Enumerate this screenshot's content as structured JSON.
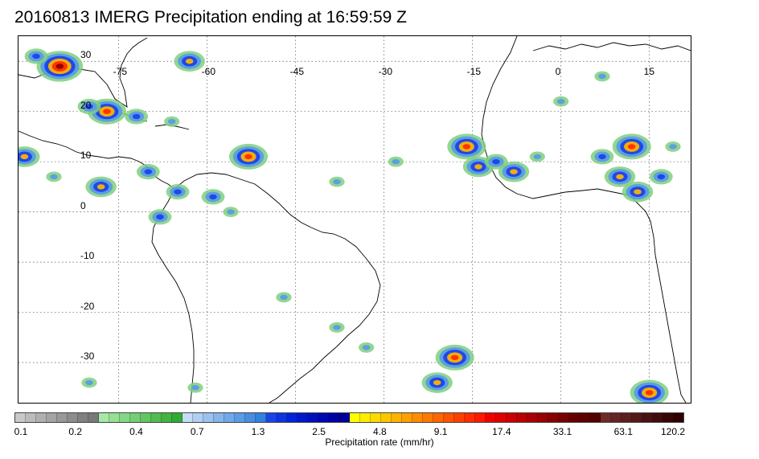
{
  "title": "20160813 IMERG Precipitation ending at 16:59:59 Z",
  "map": {
    "lon_range": [
      -92,
      22
    ],
    "lat_range": [
      -38,
      35
    ],
    "lon_ticks": [
      {
        "value": -75,
        "label": "-75"
      },
      {
        "value": -60,
        "label": "-60"
      },
      {
        "value": -45,
        "label": "-45"
      },
      {
        "value": -30,
        "label": "-30"
      },
      {
        "value": -15,
        "label": "-15"
      },
      {
        "value": 0,
        "label": "0"
      },
      {
        "value": 15,
        "label": "15"
      }
    ],
    "lat_ticks": [
      {
        "value": 30,
        "label": "30"
      },
      {
        "value": 20,
        "label": "20"
      },
      {
        "value": 10,
        "label": "10"
      },
      {
        "value": 0,
        "label": "0"
      },
      {
        "value": -10,
        "label": "-10"
      },
      {
        "value": -20,
        "label": "-20"
      },
      {
        "value": -30,
        "label": "-30"
      }
    ],
    "gridlines": "dotted",
    "coastline_color": "#000000",
    "precip_cells": [
      {
        "lon": -85,
        "lat": 29,
        "intensity": 5
      },
      {
        "lon": -89,
        "lat": 31,
        "intensity": 2
      },
      {
        "lon": -63,
        "lat": 30,
        "intensity": 3
      },
      {
        "lon": -77,
        "lat": 20,
        "intensity": 4
      },
      {
        "lon": -80,
        "lat": 21,
        "intensity": 2
      },
      {
        "lon": -72,
        "lat": 19,
        "intensity": 2
      },
      {
        "lon": -66,
        "lat": 18,
        "intensity": 1
      },
      {
        "lon": -91,
        "lat": 11,
        "intensity": 3
      },
      {
        "lon": -86,
        "lat": 7,
        "intensity": 1
      },
      {
        "lon": -78,
        "lat": 5,
        "intensity": 3
      },
      {
        "lon": -70,
        "lat": 8,
        "intensity": 2
      },
      {
        "lon": -65,
        "lat": 4,
        "intensity": 2
      },
      {
        "lon": -59,
        "lat": 3,
        "intensity": 2
      },
      {
        "lon": -68,
        "lat": -1,
        "intensity": 2
      },
      {
        "lon": -56,
        "lat": 0,
        "intensity": 1
      },
      {
        "lon": -53,
        "lat": 11,
        "intensity": 4
      },
      {
        "lon": -38,
        "lat": 6,
        "intensity": 1
      },
      {
        "lon": -28,
        "lat": 10,
        "intensity": 1
      },
      {
        "lon": -16,
        "lat": 13,
        "intensity": 4
      },
      {
        "lon": -14,
        "lat": 9,
        "intensity": 3
      },
      {
        "lon": -11,
        "lat": 10,
        "intensity": 2
      },
      {
        "lon": -8,
        "lat": 8,
        "intensity": 3
      },
      {
        "lon": -4,
        "lat": 11,
        "intensity": 1
      },
      {
        "lon": 0,
        "lat": 22,
        "intensity": 1
      },
      {
        "lon": 7,
        "lat": 27,
        "intensity": 1
      },
      {
        "lon": 7,
        "lat": 11,
        "intensity": 2
      },
      {
        "lon": 10,
        "lat": 7,
        "intensity": 3
      },
      {
        "lon": 12,
        "lat": 13,
        "intensity": 4
      },
      {
        "lon": 13,
        "lat": 4,
        "intensity": 3
      },
      {
        "lon": 17,
        "lat": 7,
        "intensity": 2
      },
      {
        "lon": 19,
        "lat": 13,
        "intensity": 1
      },
      {
        "lon": -47,
        "lat": -17,
        "intensity": 1
      },
      {
        "lon": -38,
        "lat": -23,
        "intensity": 1
      },
      {
        "lon": -33,
        "lat": -27,
        "intensity": 1
      },
      {
        "lon": -18,
        "lat": -29,
        "intensity": 4
      },
      {
        "lon": -21,
        "lat": -34,
        "intensity": 3
      },
      {
        "lon": 15,
        "lat": -36,
        "intensity": 4
      },
      {
        "lon": -62,
        "lat": -35,
        "intensity": 1
      },
      {
        "lon": -80,
        "lat": -34,
        "intensity": 1
      }
    ]
  },
  "colorbar": {
    "label": "Precipitation rate (mm/hr)",
    "colors": [
      "#c8c8c8",
      "#bcbcbc",
      "#b0b0b0",
      "#a4a4a4",
      "#989898",
      "#8c8c8c",
      "#808080",
      "#787878",
      "#a6e9a6",
      "#95e095",
      "#84d884",
      "#73cf73",
      "#62c662",
      "#51bd51",
      "#40b540",
      "#30ac30",
      "#c4dcf6",
      "#afcff3",
      "#9ac2f0",
      "#85b5ec",
      "#70a8e9",
      "#5b9be6",
      "#468ee2",
      "#3181df",
      "#1a44e8",
      "#0d34e1",
      "#0024d9",
      "#0018cc",
      "#0010bf",
      "#0008b2",
      "#0000a5",
      "#000098",
      "#ffff00",
      "#ffec00",
      "#ffd900",
      "#ffc600",
      "#ffb200",
      "#ff9f00",
      "#ff8c00",
      "#ff7900",
      "#ff6600",
      "#ff5200",
      "#ff3f00",
      "#ff2c00",
      "#ff1900",
      "#f20000",
      "#e00000",
      "#cc0000",
      "#bb0000",
      "#aa0000",
      "#990000",
      "#880000",
      "#770000",
      "#660000",
      "#5c0000",
      "#520000",
      "#6e2a2a",
      "#652424",
      "#5c1e1e",
      "#531818",
      "#4a1212",
      "#410c0c",
      "#380606",
      "#300000"
    ],
    "tick_labels": [
      "0.1",
      "0.2",
      "0.4",
      "0.7",
      "1.3",
      "2.5",
      "4.8",
      "9.1",
      "17.4",
      "33.1",
      "63.1",
      "120.2"
    ]
  }
}
